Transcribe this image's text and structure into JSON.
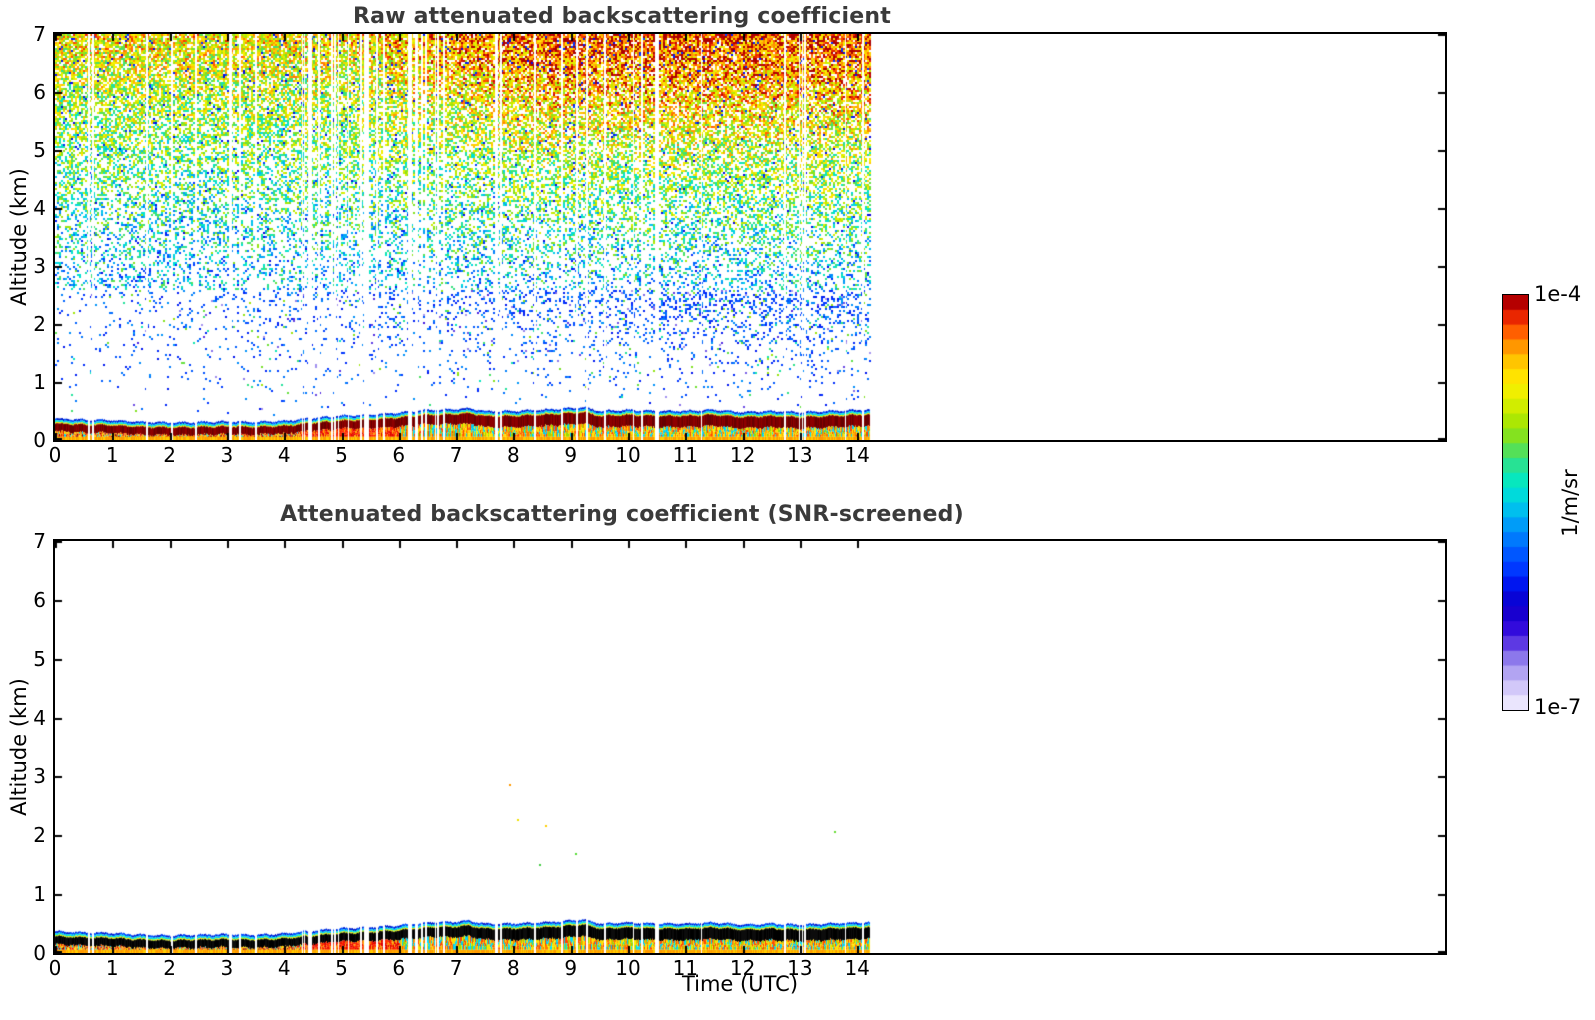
{
  "panels": [
    {
      "title": "Raw attenuated backscattering coefficient",
      "ylabel": "Altitude (km)",
      "x_tick_labels": [
        "0",
        "1",
        "2",
        "3",
        "4",
        "5",
        "6",
        "7",
        "8",
        "9",
        "10",
        "11",
        "12",
        "13",
        "14"
      ],
      "y_tick_labels": [
        "0",
        "1",
        "2",
        "3",
        "4",
        "5",
        "6",
        "7"
      ]
    },
    {
      "title": "Attenuated backscattering coefficient (SNR-screened)",
      "xlabel": "Time (UTC)",
      "ylabel": "Altitude (km)",
      "x_tick_labels": [
        "0",
        "1",
        "2",
        "3",
        "4",
        "5",
        "6",
        "7",
        "8",
        "9",
        "10",
        "11",
        "12",
        "13",
        "14"
      ],
      "y_tick_labels": [
        "0",
        "1",
        "2",
        "3",
        "4",
        "5",
        "6",
        "7"
      ]
    }
  ],
  "colorbar": {
    "top_label": "1e-4",
    "bottom_label": "1e-7",
    "unit_label": "1/m/sr",
    "scale": "log",
    "steps": 28,
    "stops": [
      [
        0.0,
        "#f4f2ff"
      ],
      [
        0.04,
        "#ded6fb"
      ],
      [
        0.08,
        "#bcaef4"
      ],
      [
        0.12,
        "#9381ec"
      ],
      [
        0.15,
        "#6b4ce4"
      ],
      [
        0.18,
        "#4318e0"
      ],
      [
        0.21,
        "#2400d8"
      ],
      [
        0.25,
        "#0e00c8"
      ],
      [
        0.29,
        "#0008e8"
      ],
      [
        0.33,
        "#0030ff"
      ],
      [
        0.39,
        "#0064ff"
      ],
      [
        0.45,
        "#00a0f8"
      ],
      [
        0.5,
        "#00d0e8"
      ],
      [
        0.545,
        "#00e8c8"
      ],
      [
        0.6,
        "#30e088"
      ],
      [
        0.65,
        "#78e028"
      ],
      [
        0.7,
        "#b0e800"
      ],
      [
        0.75,
        "#e4f000"
      ],
      [
        0.79,
        "#ffee00"
      ],
      [
        0.84,
        "#ffc400"
      ],
      [
        0.88,
        "#ff9000"
      ],
      [
        0.92,
        "#ff5000"
      ],
      [
        0.95,
        "#e62000"
      ],
      [
        0.98,
        "#bc0000"
      ],
      [
        1.0,
        "#7f0000"
      ]
    ]
  },
  "gaps": {
    "count": 58,
    "cluster_count": 18,
    "cluster_range_utc": [
      4.25,
      6.4
    ],
    "time_range_utc": [
      0.3,
      14.15
    ],
    "seed": 1234
  },
  "band_style": {
    "edge_blue": [
      "#0018cf",
      "#0050ff"
    ],
    "edge_cyan": [
      "#00ccff",
      "#00eedd"
    ],
    "edge_yellow_green": [
      "#b8ee00",
      "#ffe800"
    ],
    "core_raw": [
      "#7c0000",
      "#8f0000",
      "#680000"
    ],
    "core_screened": [
      "#000000",
      "#0c0c0c"
    ],
    "bottom": [
      "#ff9900",
      "#ffcc00",
      "#ffaa00"
    ],
    "sub_early": [
      "#ff8800",
      "#ff5500",
      "#ee1100",
      "#ffcc00",
      "#00ddee",
      "#ff9900",
      "#7f0000",
      "#ffee00"
    ],
    "sub_mid": [
      "#ee1100",
      "#ff3300",
      "#ff6600",
      "#dd0000",
      "#ffaa00",
      "#ff2200"
    ],
    "sub_late": [
      "#ffdd00",
      "#ffaa00",
      "#00e0ff",
      "#99dd00",
      "#ff7700",
      "#ffee00",
      "#00ccee",
      "#ff4400"
    ]
  },
  "chart_data": [
    {
      "type": "heatmap",
      "panel": "raw",
      "title": "Raw attenuated backscattering coefficient",
      "xlabel": "Time (UTC)",
      "ylabel": "Altitude (km)",
      "xlim": [
        0,
        24.3
      ],
      "x_ticks": [
        0,
        1,
        2,
        3,
        4,
        5,
        6,
        7,
        8,
        9,
        10,
        11,
        12,
        13,
        14
      ],
      "ylim": [
        0,
        7
      ],
      "y_ticks": [
        0,
        1,
        2,
        3,
        4,
        5,
        6,
        7
      ],
      "data_time_range_utc": [
        0,
        14.2
      ],
      "value_scale": {
        "type": "log",
        "min": 1e-07,
        "max": 0.0001,
        "unit": "1/m/sr",
        "colormap": "jet with pale-violet/white low end"
      },
      "boundary_layer_top_km": {
        "t": [
          0,
          0.5,
          1,
          1.5,
          2,
          2.5,
          3,
          3.5,
          4,
          4.5,
          5,
          5.5,
          6,
          6.5,
          7,
          7.2,
          7.5,
          8,
          8.5,
          9,
          9.2,
          9.5,
          10,
          10.5,
          11,
          11.5,
          12,
          12.5,
          13,
          13.5,
          14,
          14.2
        ],
        "z": [
          0.37,
          0.35,
          0.34,
          0.31,
          0.3,
          0.31,
          0.32,
          0.31,
          0.33,
          0.38,
          0.42,
          0.44,
          0.47,
          0.52,
          0.53,
          0.55,
          0.5,
          0.5,
          0.52,
          0.55,
          0.57,
          0.5,
          0.52,
          0.5,
          0.5,
          0.52,
          0.48,
          0.5,
          0.48,
          0.5,
          0.52,
          0.52
        ],
        "units": "km"
      },
      "noise_description": "dense receiver-noise speckle above the aerosol layer; apparent value rises with altitude (blue ~1.5 km to yellow/orange at 7 km) and after ~06 UTC (daylight, orange/red at top right); sparse blue dots 1-2.5 km; thin white vertical stripes are missing profiles; no data after 14.2 UTC",
      "seed": 42
    },
    {
      "type": "heatmap",
      "panel": "snr_screened",
      "title": "Attenuated backscattering coefficient (SNR-screened)",
      "xlabel": "Time (UTC)",
      "ylabel": "Altitude (km)",
      "xlim": [
        0,
        24.3
      ],
      "x_ticks": [
        0,
        1,
        2,
        3,
        4,
        5,
        6,
        7,
        8,
        9,
        10,
        11,
        12,
        13,
        14
      ],
      "ylim": [
        0,
        7
      ],
      "y_ticks": [
        0,
        1,
        2,
        3,
        4,
        5,
        6,
        7
      ],
      "data_time_range_utc": [
        0,
        14.2
      ],
      "value_scale": {
        "type": "log",
        "min": 1e-07,
        "max": 0.0001,
        "unit": "1/m/sr",
        "colormap": "jet with pale-violet/white low end"
      },
      "screened": true,
      "boundary_layer_top_km": {
        "t": [
          0,
          0.5,
          1,
          1.5,
          2,
          2.5,
          3,
          3.5,
          4,
          4.5,
          5,
          5.5,
          6,
          6.5,
          7,
          7.2,
          7.5,
          8,
          8.5,
          9,
          9.2,
          9.5,
          10,
          10.5,
          11,
          11.5,
          12,
          12.5,
          13,
          13.5,
          14,
          14.2
        ],
        "z": [
          0.37,
          0.35,
          0.34,
          0.31,
          0.3,
          0.31,
          0.32,
          0.31,
          0.33,
          0.38,
          0.42,
          0.44,
          0.47,
          0.52,
          0.53,
          0.55,
          0.5,
          0.5,
          0.52,
          0.55,
          0.57,
          0.5,
          0.52,
          0.5,
          0.5,
          0.52,
          0.48,
          0.5,
          0.48,
          0.5,
          0.52,
          0.52
        ],
        "units": "km"
      },
      "isolated_points": [
        {
          "t": 7.94,
          "z": 2.85,
          "color": "#ff9900"
        },
        {
          "t": 8.08,
          "z": 2.26,
          "color": "#f0e000"
        },
        {
          "t": 8.57,
          "z": 2.16,
          "color": "#ffd000"
        },
        {
          "t": 9.09,
          "z": 1.68,
          "color": "#55dd33"
        },
        {
          "t": 8.47,
          "z": 1.5,
          "color": "#44cc44"
        },
        {
          "t": 13.61,
          "z": 2.06,
          "color": "#66dd33"
        }
      ],
      "noise_description": "all noise removed by SNR screening: white background above the aerosol layer except a few isolated speckles 1.5-2.9 km; layer core rendered black instead of dark red",
      "seed": 77
    }
  ]
}
